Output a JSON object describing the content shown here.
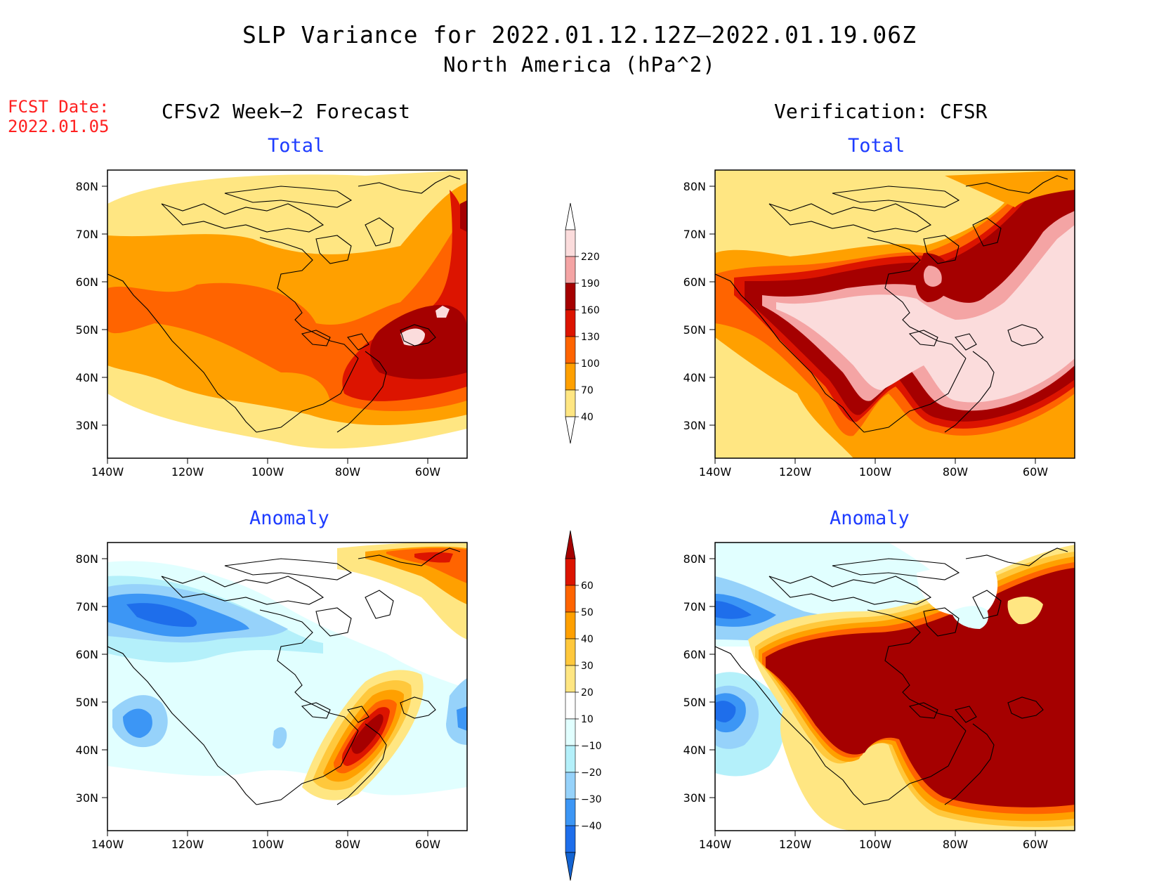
{
  "header": {
    "title": "SLP Variance for 2022.01.12.12Z–2022.01.19.06Z",
    "subtitle": "North America (hPa^2)",
    "fcst_label": "FCST Date:",
    "fcst_date": "2022.01.05"
  },
  "columns": {
    "left": "CFSv2 Week−2 Forecast",
    "right": "Verification: CFSR"
  },
  "panel_titles": {
    "total": "Total",
    "anomaly": "Anomaly"
  },
  "axes": {
    "lat_ticks": [
      "80N",
      "70N",
      "60N",
      "50N",
      "40N",
      "30N"
    ],
    "lon_ticks": [
      "140W",
      "120W",
      "100W",
      "80W",
      "60W"
    ]
  },
  "colorbars": {
    "total": {
      "levels": [
        "220",
        "190",
        "160",
        "130",
        "100",
        "70",
        "40"
      ],
      "colors": [
        "#ffffff",
        "#fbdcdc",
        "#f4a4a4",
        "#a50000",
        "#dc1400",
        "#ff6400",
        "#ffa000",
        "#ffe682",
        "#ffffff"
      ]
    },
    "anomaly": {
      "levels": [
        "60",
        "50",
        "40",
        "30",
        "20",
        "10",
        "−10",
        "−20",
        "−30",
        "−40"
      ],
      "colors": [
        "#a50000",
        "#dc1400",
        "#ff6400",
        "#ffa000",
        "#ffc83c",
        "#ffe682",
        "#ffffff",
        "#e1ffff",
        "#b4f0fa",
        "#96d2fa",
        "#3c96f5",
        "#1e6eeb",
        "#1464d2"
      ]
    }
  }
}
